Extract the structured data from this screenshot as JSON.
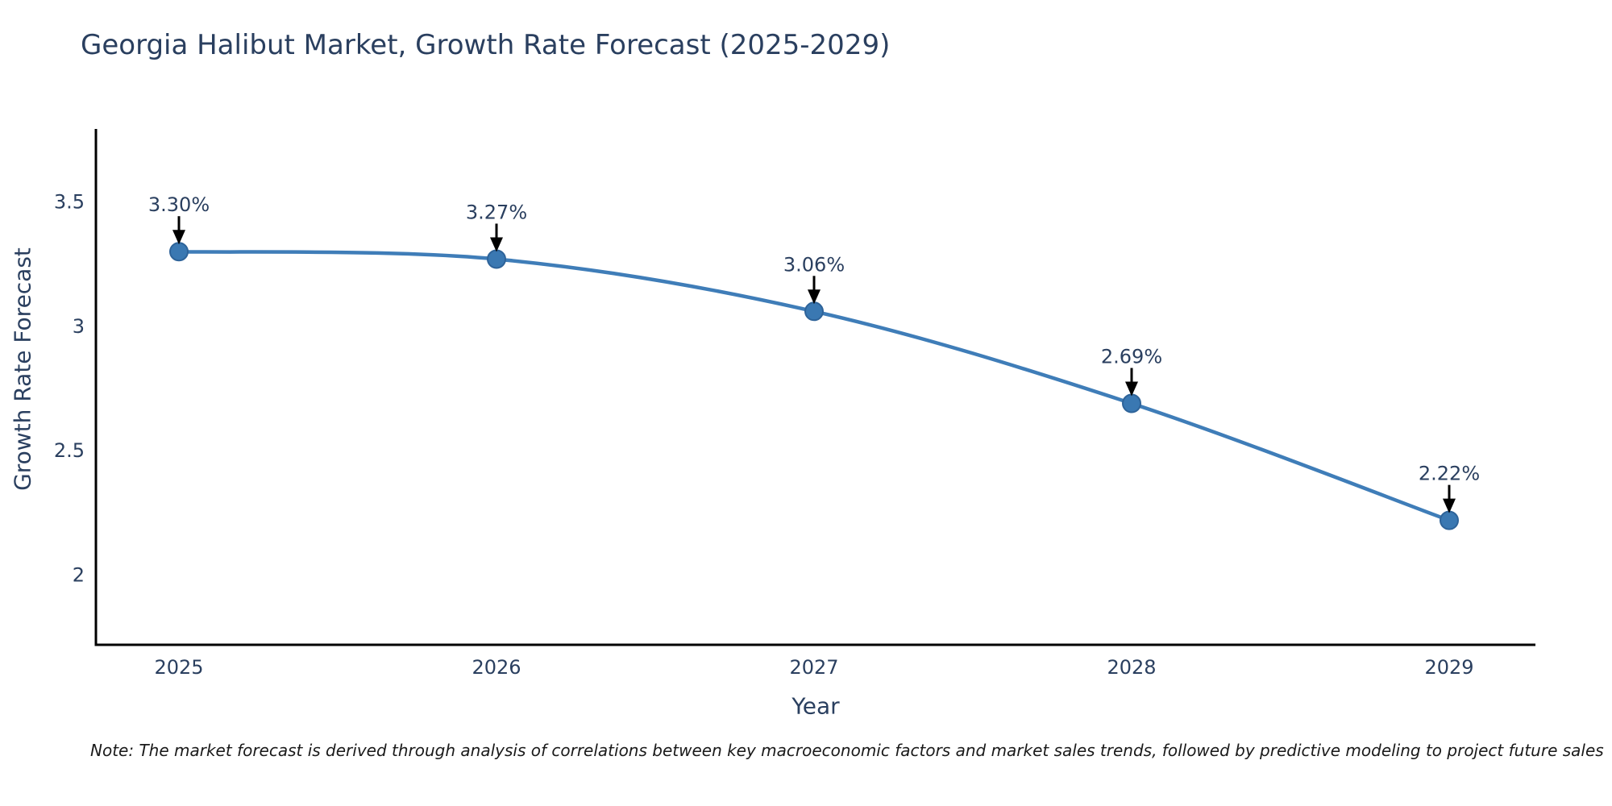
{
  "title": "Georgia Halibut Market, Growth Rate Forecast (2025-2029)",
  "note": "Note: The market forecast is derived through analysis of correlations between key macroeconomic factors and market sales trends, followed by predictive modeling to project future sales",
  "chart_data": {
    "type": "line",
    "title": "Georgia Halibut Market, Growth Rate Forecast (2025-2029)",
    "x": [
      2025,
      2026,
      2027,
      2028,
      2029
    ],
    "series": [
      {
        "name": "Growth Rate Forecast",
        "values": [
          3.3,
          3.27,
          3.06,
          2.69,
          2.22
        ]
      }
    ],
    "point_labels": [
      "3.30%",
      "3.27%",
      "3.06%",
      "2.69%",
      "2.22%"
    ],
    "xlabel": "Year",
    "ylabel": "Growth Rate Forecast",
    "yticks": [
      "2",
      "2.5",
      "3",
      "3.5"
    ],
    "ytick_values": [
      2,
      2.5,
      3,
      3.5
    ],
    "ylim": [
      1.72,
      3.793
    ],
    "line_shape": "spline",
    "grid": false,
    "legend_position": "none",
    "annotations_style": "value label with black down-arrow onto each marker",
    "colors": {
      "line": "#3f7db8",
      "marker": "#3a78b2",
      "marker_border": "#2e6399",
      "text": "#2a3f5f",
      "axis": "#000000",
      "arrow": "#000000",
      "background": "#ffffff"
    }
  }
}
